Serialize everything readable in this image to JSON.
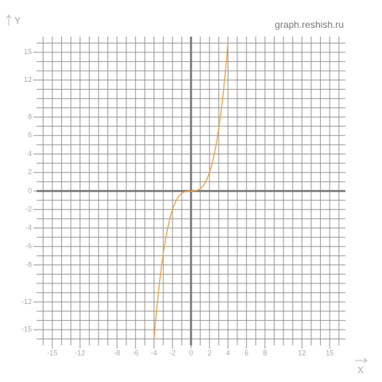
{
  "chart_data": {
    "type": "line",
    "watermark": "graph.reshish.ru",
    "x_label": "X",
    "y_label": "Y",
    "x": [
      -4,
      -3.75,
      -3.5,
      -3.25,
      -3,
      -2.75,
      -2.5,
      -2.25,
      -2,
      -1.75,
      -1.5,
      -1.25,
      -1,
      -0.75,
      -0.5,
      -0.25,
      0,
      0.25,
      0.5,
      0.75,
      1,
      1.25,
      1.5,
      1.75,
      2,
      2.25,
      2.5,
      2.75,
      3,
      3.25,
      3.5,
      3.75,
      4
    ],
    "series": [
      {
        "color": "#f0a040",
        "values": [
          -16,
          -13.184,
          -10.719,
          -8.582,
          -6.75,
          -5.199,
          -3.906,
          -2.848,
          -2,
          -1.34,
          -0.844,
          -0.488,
          -0.25,
          -0.105,
          -0.031,
          -0.004,
          0,
          0.004,
          0.031,
          0.105,
          0.25,
          0.488,
          0.844,
          1.34,
          2,
          2.848,
          3.906,
          5.199,
          6.75,
          8.582,
          10.719,
          13.184,
          16
        ]
      }
    ],
    "xlim": [
      -16.7,
      16.7
    ],
    "ylim": [
      -16.7,
      16.7
    ],
    "xticks": [
      -15,
      -12,
      -8,
      -6,
      -4,
      -2,
      0,
      2,
      4,
      6,
      8,
      12,
      15
    ],
    "yticks": [
      -15,
      -12,
      -8,
      -6,
      -4,
      -2,
      0,
      2,
      4,
      6,
      8,
      12,
      15
    ],
    "grid": true,
    "grid_step": 1
  }
}
